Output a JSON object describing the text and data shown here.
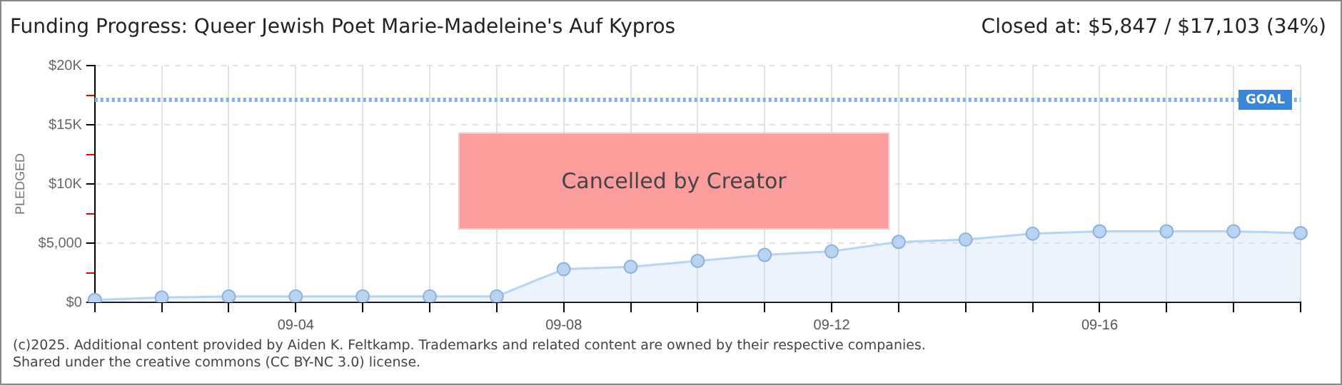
{
  "chart_data": {
    "type": "area",
    "title": "Funding Progress: Queer Jewish Poet Marie-Madeleine's Auf Kypros",
    "subtitle": "Closed at: $5,847 / $17,103 (34%)",
    "ylabel": "PLEDGED",
    "categories": [
      null,
      null,
      null,
      "09-04",
      null,
      null,
      null,
      "09-08",
      null,
      null,
      null,
      "09-12",
      null,
      null,
      null,
      "09-16",
      null,
      null,
      null
    ],
    "series": [
      {
        "color": "#b7d4f3",
        "values": [
          200,
          400,
          500,
          500,
          500,
          500,
          500,
          2800,
          3000,
          3500,
          4000,
          4300,
          5100,
          5300,
          5800,
          6000,
          6000,
          6000,
          5847
        ]
      }
    ],
    "ylim": [
      0,
      20000
    ],
    "yticks": [
      {
        "value": 0,
        "label": "$0"
      },
      {
        "value": 2500,
        "label": null
      },
      {
        "value": 5000,
        "label": "$5,000"
      },
      {
        "value": 7500,
        "label": null
      },
      {
        "value": 10000,
        "label": "$10K"
      },
      {
        "value": 12500,
        "label": null
      },
      {
        "value": 15000,
        "label": "$15K"
      },
      {
        "value": 17500,
        "label": null
      },
      {
        "value": 20000,
        "label": "$20K"
      }
    ],
    "ref_lines": [
      {
        "axis": "y",
        "value": 17103,
        "label": "GOAL",
        "color": "#7fb2e5",
        "line_style": "dotted"
      }
    ],
    "annotations": [
      "Cancelled by Creator",
      "(c)2025. Additional content provided by Aiden K. Feltkamp. Trademarks and related content are owned by their respective companies.",
      "Shared under the creative commons (CC BY-NC 3.0) license."
    ],
    "grid": true,
    "marker": "circle",
    "line_style": "solid",
    "legend": false
  }
}
